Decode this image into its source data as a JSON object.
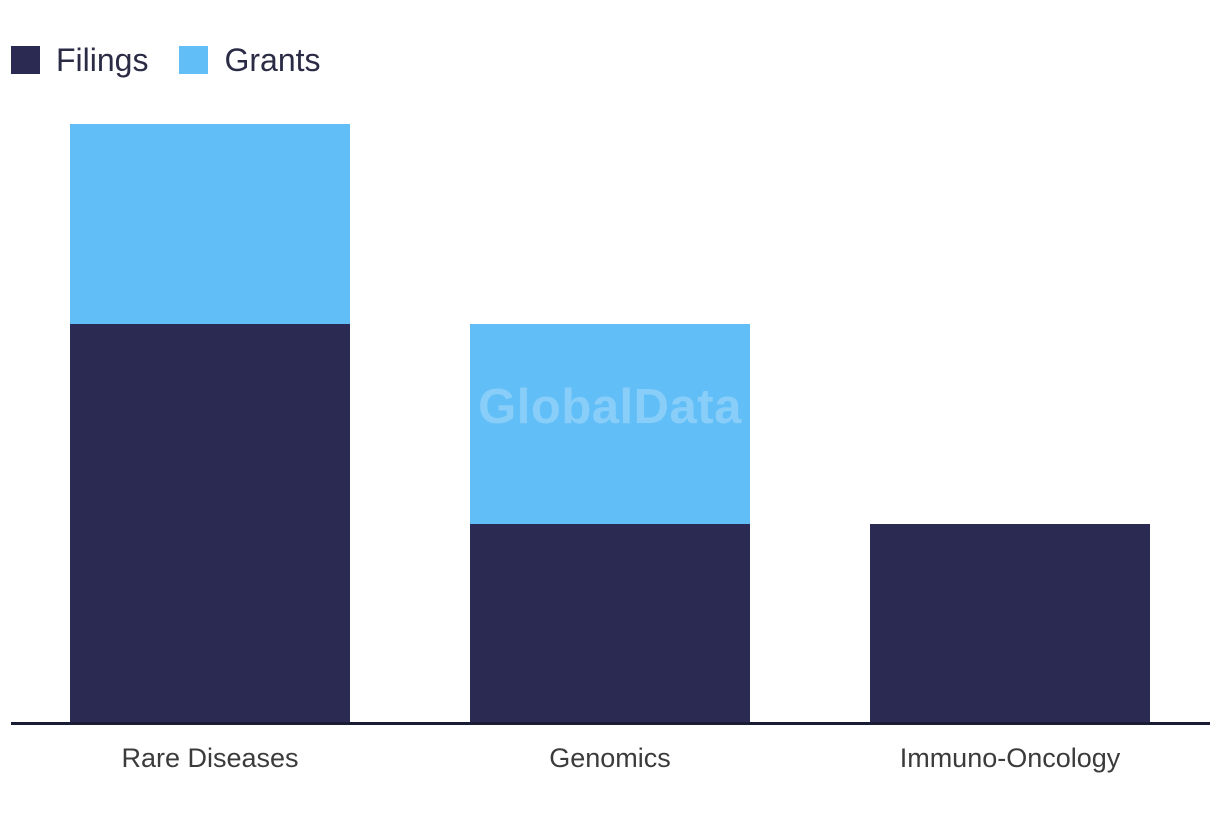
{
  "chart_data": {
    "type": "bar",
    "stacked": true,
    "title": "",
    "xlabel": "",
    "ylabel": "",
    "categories": [
      "Rare Diseases",
      "Genomics",
      "Immuno-Oncology"
    ],
    "series": [
      {
        "name": "Filings",
        "color": "#2a2a52",
        "values": [
          400,
          200,
          200
        ]
      },
      {
        "name": "Grants",
        "color": "#61bef7",
        "values": [
          200,
          200,
          0
        ]
      }
    ],
    "totals": [
      600,
      400,
      200
    ],
    "value_axis": "hidden",
    "value_note": "no y-axis, gridlines or data labels shown; values are relative units read from bar pixel heights",
    "grid": false,
    "legend_position": "top-left"
  },
  "watermark": {
    "text": "GlobalData"
  },
  "colors": {
    "background": "#ffffff",
    "axis_line": "#1a1c33",
    "category_label": "#3b3b3b",
    "legend_label": "#2b2b45",
    "watermark_fill": "rgba(255,255,255,0.25)"
  }
}
